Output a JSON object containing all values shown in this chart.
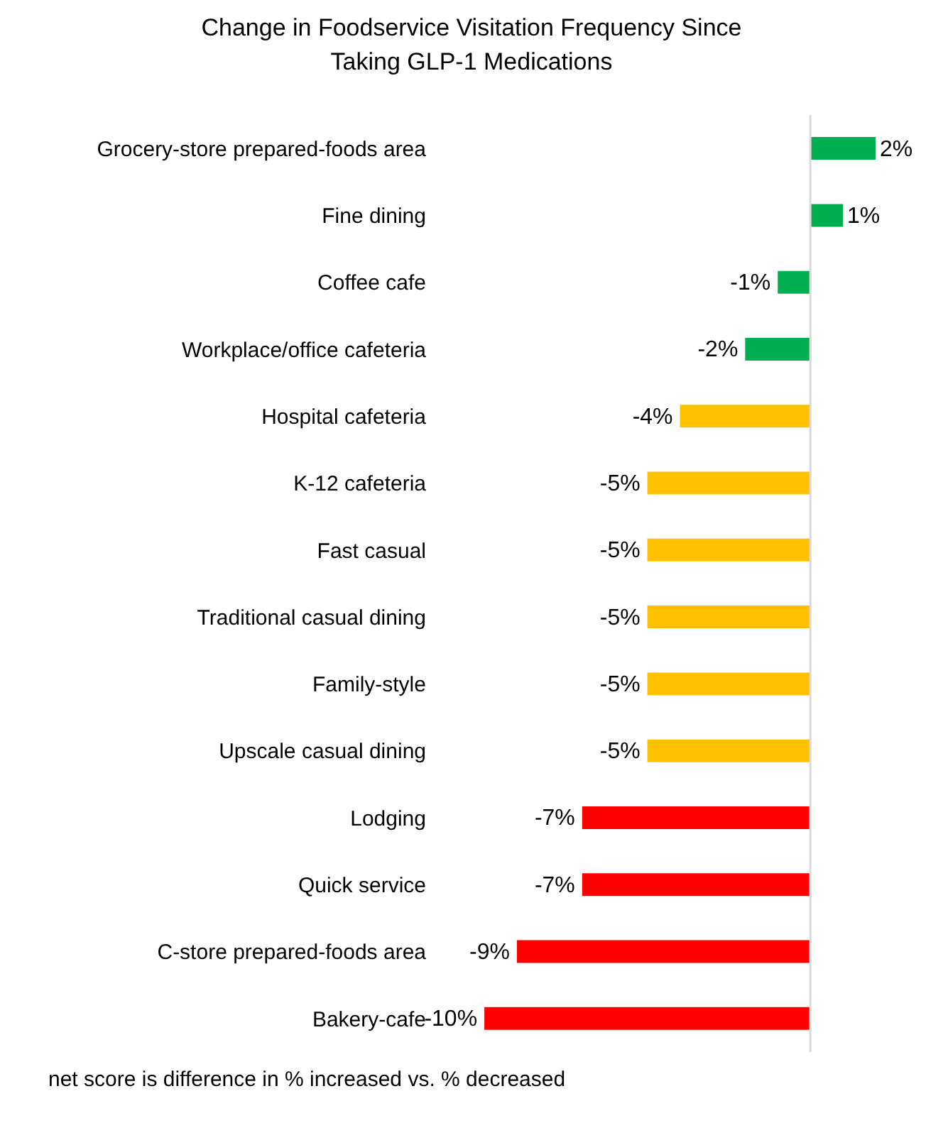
{
  "chart_data": {
    "type": "bar",
    "orientation": "horizontal",
    "title": "Change in Foodservice Visitation Frequency Since Taking GLP-1 Medications",
    "categories": [
      "Grocery-store prepared-foods area",
      "Fine dining",
      "Coffee cafe",
      "Workplace/office cafeteria",
      "Hospital cafeteria",
      "K-12 cafeteria",
      "Fast casual",
      "Traditional casual dining",
      "Family-style",
      "Upscale casual dining",
      "Lodging",
      "Quick service",
      "C-store prepared-foods area",
      "Bakery-cafe"
    ],
    "values": [
      2,
      1,
      -1,
      -2,
      -4,
      -5,
      -5,
      -5,
      -5,
      -5,
      -7,
      -7,
      -9,
      -10
    ],
    "value_labels": [
      "2%",
      "1%",
      "-1%",
      "-2%",
      "-4%",
      "-5%",
      "-5%",
      "-5%",
      "-5%",
      "-5%",
      "-7%",
      "-7%",
      "-9%",
      "-10%"
    ],
    "colors": [
      "#00b050",
      "#00b050",
      "#00b050",
      "#00b050",
      "#ffc000",
      "#ffc000",
      "#ffc000",
      "#ffc000",
      "#ffc000",
      "#ffc000",
      "#ff0000",
      "#ff0000",
      "#ff0000",
      "#ff0000"
    ],
    "ref_lines": [
      {
        "axis": "x",
        "value": 0,
        "color": "#d9d9d9"
      }
    ],
    "annotations": [
      "net score is difference in % increased vs. % decreased"
    ]
  }
}
